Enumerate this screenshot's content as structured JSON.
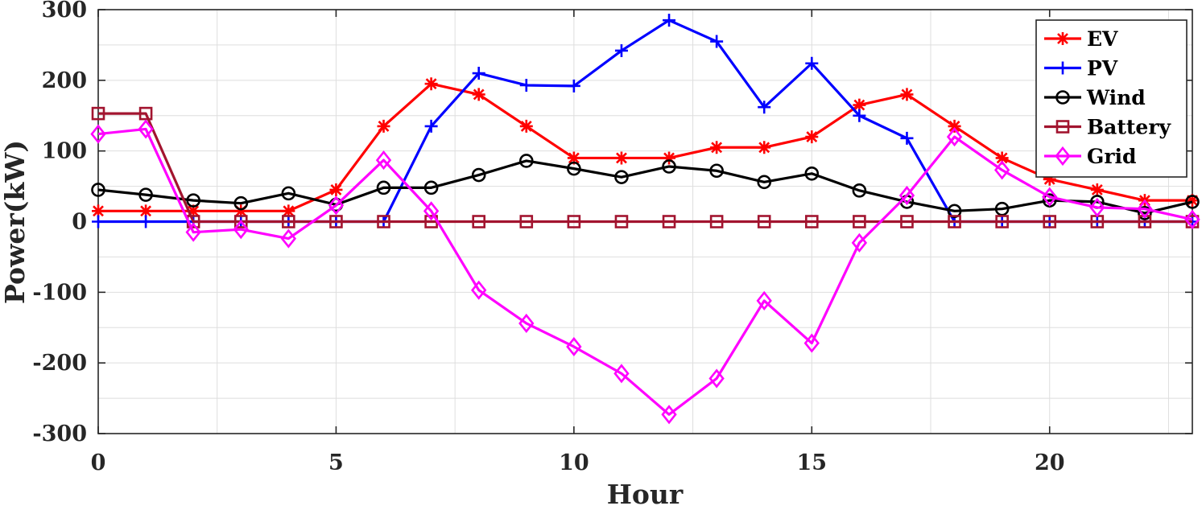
{
  "chart_data": {
    "type": "line",
    "xlabel": "Hour",
    "ylabel": "Power(kW)",
    "xlim": [
      0,
      23
    ],
    "ylim": [
      -300,
      300
    ],
    "xticks": [
      "0",
      "5",
      "10",
      "15",
      "20"
    ],
    "yticks": [
      "300",
      "200",
      "100",
      "0",
      "-100",
      "-200",
      "-300"
    ],
    "grid": true,
    "legend_position": "top-right",
    "x": [
      0,
      1,
      2,
      3,
      4,
      5,
      6,
      7,
      8,
      9,
      10,
      11,
      12,
      13,
      14,
      15,
      16,
      17,
      18,
      19,
      20,
      21,
      22,
      23
    ],
    "series": [
      {
        "name": "EV",
        "color": "#ff0000",
        "marker": "asterisk",
        "values": [
          15,
          15,
          15,
          15,
          15,
          45,
          135,
          195,
          180,
          135,
          90,
          90,
          90,
          105,
          105,
          120,
          165,
          180,
          135,
          90,
          60,
          45,
          30,
          30
        ]
      },
      {
        "name": "PV",
        "color": "#0000ff",
        "marker": "plus",
        "values": [
          0,
          0,
          0,
          0,
          0,
          0,
          0,
          135,
          210,
          193,
          192,
          242,
          285,
          255,
          162,
          224,
          150,
          118,
          0,
          0,
          0,
          0,
          0,
          0
        ]
      },
      {
        "name": "Wind",
        "color": "#000000",
        "marker": "circle",
        "values": [
          45,
          38,
          30,
          26,
          40,
          24,
          48,
          48,
          66,
          86,
          75,
          63,
          78,
          72,
          56,
          68,
          44,
          28,
          15,
          18,
          30,
          28,
          12,
          28
        ]
      },
      {
        "name": "Battery",
        "color": "#a2142f",
        "marker": "square",
        "values": [
          153,
          153,
          0,
          0,
          0,
          0,
          0,
          0,
          0,
          0,
          0,
          0,
          0,
          0,
          0,
          0,
          0,
          0,
          0,
          0,
          0,
          0,
          0,
          0
        ]
      },
      {
        "name": "Grid",
        "color": "#ff00ff",
        "marker": "diamond",
        "values": [
          124,
          131,
          -15,
          -11,
          -24,
          23,
          87,
          15,
          -97,
          -144,
          -177,
          -215,
          -273,
          -222,
          -112,
          -172,
          -30,
          37,
          120,
          73,
          35,
          20,
          18,
          3
        ]
      }
    ]
  }
}
